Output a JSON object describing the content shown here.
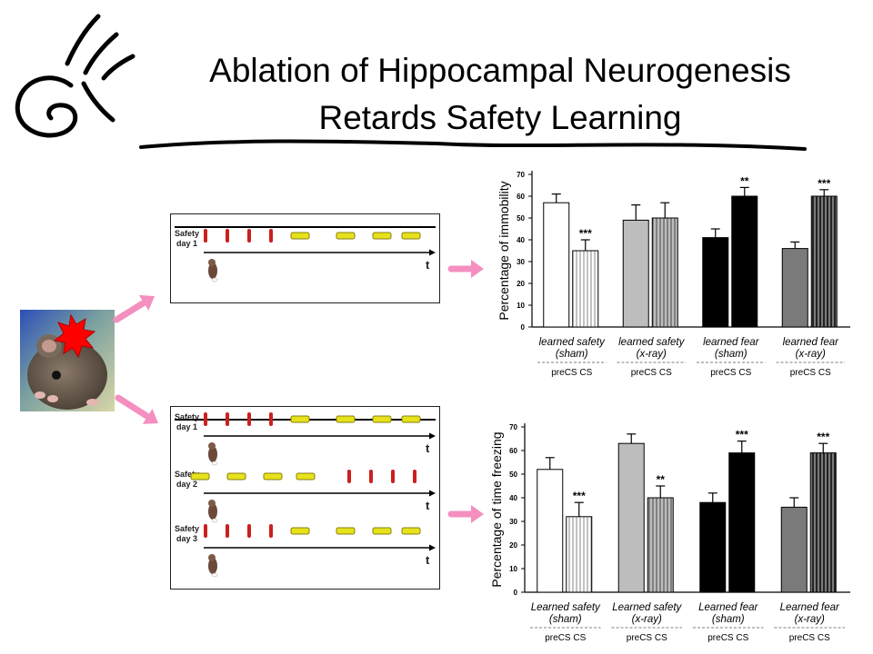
{
  "slide": {
    "title_line1": "Ablation of Hippocampal Neurogenesis",
    "title_line2": "Retards Safety Learning"
  },
  "timelines": {
    "top": {
      "rows": [
        {
          "label1": "Safety",
          "label2": "day 1",
          "axis_label": "t",
          "shock_count": 4,
          "cs_count": 4,
          "cs_first": false
        }
      ]
    },
    "bottom": {
      "rows": [
        {
          "label1": "Safety",
          "label2": "day 1",
          "axis_label": "t",
          "shock_count": 4,
          "cs_count": 4,
          "cs_first": false
        },
        {
          "label1": "Safety",
          "label2": "day 2",
          "axis_label": "t",
          "shock_count": 4,
          "cs_count": 4,
          "cs_first": true
        },
        {
          "label1": "Safety",
          "label2": "day 3",
          "axis_label": "t",
          "shock_count": 4,
          "cs_count": 4,
          "cs_first": false
        }
      ]
    }
  },
  "colors": {
    "arrow": "#f48fc0",
    "shock": "#cc1f1f",
    "cs_fill": "#e6e21b",
    "cs_stroke": "#8a7f10",
    "burst": "#ff0000"
  },
  "chart_data": [
    {
      "type": "bar",
      "ylabel": "Percentage of immobility",
      "ylim": [
        0,
        70
      ],
      "yticks": [
        0,
        10,
        20,
        30,
        40,
        50,
        60,
        70
      ],
      "groups": [
        {
          "label1": "learned safety",
          "label2": "(sham)",
          "sub": "preCS  CS",
          "fill": "#ffffff",
          "values": [
            57,
            35
          ],
          "errors": [
            4,
            5
          ],
          "marks": [
            "",
            "***"
          ]
        },
        {
          "label1": "learned safety",
          "label2": "(x-ray)",
          "sub": "preCS  CS",
          "fill": "#bdbdbd",
          "values": [
            49,
            50
          ],
          "errors": [
            7,
            7
          ],
          "marks": [
            "",
            ""
          ]
        },
        {
          "label1": "learned fear",
          "label2": "(sham)",
          "sub": "preCS  CS",
          "fill": "#000000",
          "values": [
            41,
            60
          ],
          "errors": [
            4,
            4
          ],
          "marks": [
            "",
            "**"
          ]
        },
        {
          "label1": "learned fear",
          "label2": "(x-ray)",
          "sub": "preCS  CS",
          "fill": "#7a7a7a",
          "values": [
            36,
            60
          ],
          "errors": [
            3,
            3
          ],
          "marks": [
            "",
            "***"
          ]
        }
      ]
    },
    {
      "type": "bar",
      "ylabel": "Percentage of time freezing",
      "ylim": [
        0,
        70
      ],
      "yticks": [
        0,
        10,
        20,
        30,
        40,
        50,
        60,
        70
      ],
      "groups": [
        {
          "label1": "Learned safety",
          "label2": "(sham)",
          "sub": "preCS  CS",
          "fill": "#ffffff",
          "values": [
            52,
            32
          ],
          "errors": [
            5,
            6
          ],
          "marks": [
            "",
            "***"
          ]
        },
        {
          "label1": "Learned safety",
          "label2": "(x-ray)",
          "sub": "preCS  CS",
          "fill": "#bdbdbd",
          "values": [
            63,
            40
          ],
          "errors": [
            4,
            5
          ],
          "marks": [
            "",
            "**"
          ]
        },
        {
          "label1": "Learned fear",
          "label2": "(sham)",
          "sub": "preCS  CS",
          "fill": "#000000",
          "values": [
            38,
            59
          ],
          "errors": [
            4,
            5
          ],
          "marks": [
            "",
            "***"
          ]
        },
        {
          "label1": "Learned fear",
          "label2": "(x-ray)",
          "sub": "preCS  CS",
          "fill": "#7a7a7a",
          "values": [
            36,
            59
          ],
          "errors": [
            4,
            4
          ],
          "marks": [
            "",
            "***"
          ]
        }
      ]
    }
  ]
}
